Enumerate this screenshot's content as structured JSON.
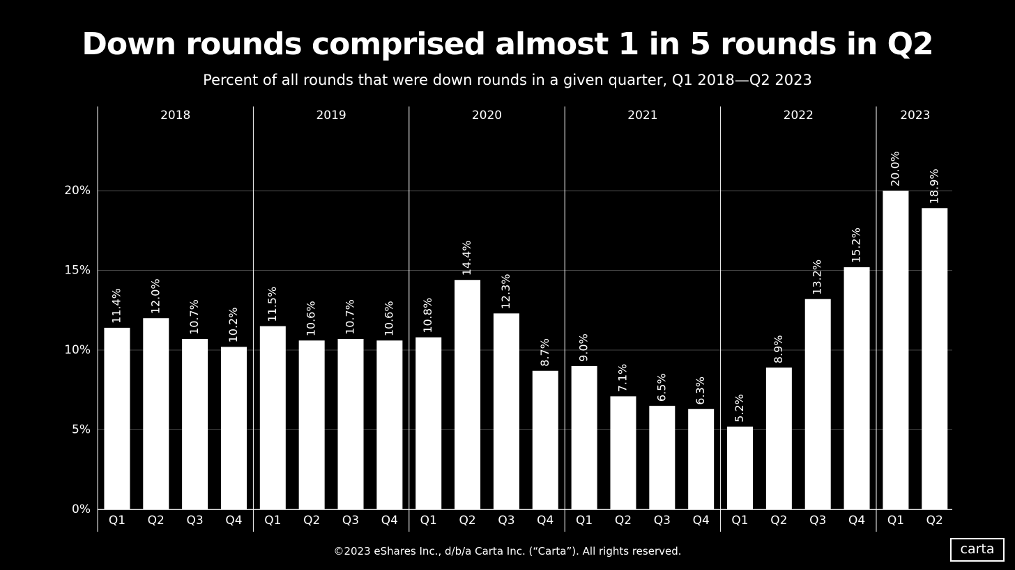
{
  "chart_data": {
    "type": "bar",
    "title": "Down rounds comprised almost 1 in 5 rounds in Q2",
    "subtitle": "Percent of all rounds that were down rounds in a given quarter, Q1 2018—Q2 2023",
    "xlabel": "",
    "ylabel": "",
    "ylim": [
      0,
      25
    ],
    "yticks": [
      0,
      5,
      10,
      15,
      20
    ],
    "ytick_labels": [
      "0%",
      "5%",
      "10%",
      "15%",
      "20%"
    ],
    "grid": true,
    "groups": [
      {
        "year": "2018",
        "quarters": [
          "Q1",
          "Q2",
          "Q3",
          "Q4"
        ],
        "values": [
          11.4,
          12.0,
          10.7,
          10.2
        ],
        "labels": [
          "11.4%",
          "12.0%",
          "10.7%",
          "10.2%"
        ]
      },
      {
        "year": "2019",
        "quarters": [
          "Q1",
          "Q2",
          "Q3",
          "Q4"
        ],
        "values": [
          11.5,
          10.6,
          10.7,
          10.6
        ],
        "labels": [
          "11.5%",
          "10.6%",
          "10.7%",
          "10.6%"
        ]
      },
      {
        "year": "2020",
        "quarters": [
          "Q1",
          "Q2",
          "Q3",
          "Q4"
        ],
        "values": [
          10.8,
          14.4,
          12.3,
          8.7
        ],
        "labels": [
          "10.8%",
          "14.4%",
          "12.3%",
          "8.7%"
        ]
      },
      {
        "year": "2021",
        "quarters": [
          "Q1",
          "Q2",
          "Q3",
          "Q4"
        ],
        "values": [
          9.0,
          7.1,
          6.5,
          6.3
        ],
        "labels": [
          "9.0%",
          "7.1%",
          "6.5%",
          "6.3%"
        ]
      },
      {
        "year": "2022",
        "quarters": [
          "Q1",
          "Q2",
          "Q3",
          "Q4"
        ],
        "values": [
          5.2,
          8.9,
          13.2,
          15.2
        ],
        "labels": [
          "5.2%",
          "8.9%",
          "13.2%",
          "15.2%"
        ]
      },
      {
        "year": "2023",
        "quarters": [
          "Q1",
          "Q2"
        ],
        "values": [
          20.0,
          18.9
        ],
        "labels": [
          "20.0%",
          "18.9%"
        ]
      }
    ]
  },
  "footer": {
    "copyright": "©2023 eShares Inc., d/b/a Carta Inc. (“Carta”). All rights reserved.",
    "logo_text": "carta"
  },
  "colors": {
    "background": "#000000",
    "bar": "#ffffff",
    "text": "#ffffff",
    "grid": "#444444",
    "divider": "#ffffff"
  }
}
